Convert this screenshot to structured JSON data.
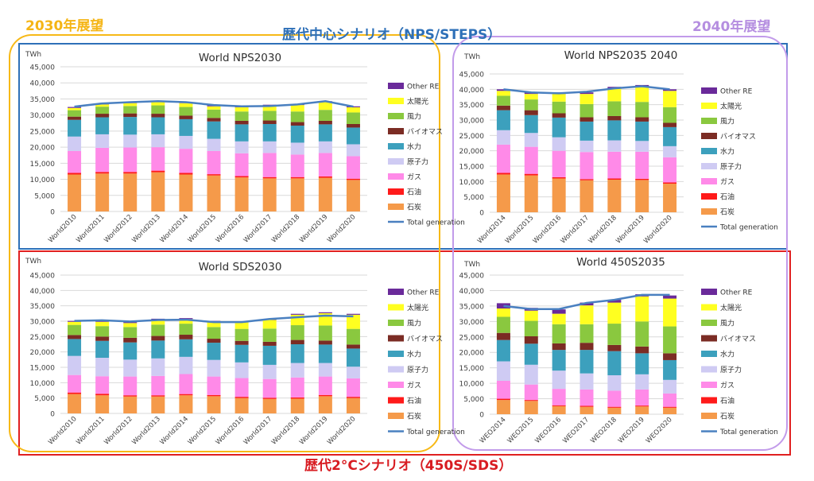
{
  "annotations": {
    "left_group": "2030年展望",
    "right_group": "2040年展望",
    "top_group": "歴代中心シナリオ（NPS/STEPS）",
    "bottom_group": "歴代2°Cシナリオ（450S/SDS）"
  },
  "colors": {
    "石炭": "#f59a4a",
    "石油": "#ff1a1a",
    "ガス": "#ff8ae8",
    "原子力": "#cfcbf3",
    "水力": "#3ca0bd",
    "バイオマス": "#7b2c24",
    "風力": "#8ac83f",
    "太陽光": "#ffff20",
    "Other RE": "#6a2a9a",
    "Total generation": "#4a80c0"
  },
  "chart_data": [
    {
      "type": "bar",
      "stacked": true,
      "title": "World NPS2030",
      "ylabel": "TWh",
      "ylim": [
        0,
        45000
      ],
      "yticks": [
        "0",
        "5,000",
        "10,000",
        "15,000",
        "20,000",
        "25,000",
        "30,000",
        "35,000",
        "40,000",
        "45,000"
      ],
      "legend_position": "right",
      "categories": [
        "World2010",
        "World2011",
        "World2012",
        "World2013",
        "World2014",
        "World2015",
        "World2016",
        "World2017",
        "World2018",
        "World2019",
        "World2020"
      ],
      "series": [
        {
          "name": "石炭",
          "values": [
            11500,
            11800,
            11800,
            12200,
            11500,
            11200,
            10600,
            10300,
            10300,
            10500,
            9800
          ]
        },
        {
          "name": "石油",
          "values": [
            500,
            500,
            500,
            500,
            500,
            400,
            400,
            400,
            400,
            400,
            400
          ]
        },
        {
          "name": "ガス",
          "values": [
            6800,
            7500,
            7600,
            7300,
            7500,
            7200,
            7100,
            7500,
            7000,
            7300,
            7000
          ]
        },
        {
          "name": "原子力",
          "values": [
            4500,
            4200,
            4000,
            4000,
            4000,
            3800,
            3700,
            3600,
            3700,
            3600,
            3700
          ]
        },
        {
          "name": "水力",
          "values": [
            5200,
            5300,
            5500,
            5300,
            5200,
            5400,
            5300,
            5400,
            5300,
            5300,
            5200
          ]
        },
        {
          "name": "バイオマス",
          "values": [
            1000,
            1100,
            1100,
            1100,
            1100,
            1100,
            1100,
            1100,
            1100,
            1100,
            1100
          ]
        },
        {
          "name": "風力",
          "values": [
            2000,
            2200,
            2300,
            2600,
            2700,
            2600,
            2900,
            3000,
            3300,
            3400,
            3600
          ]
        },
        {
          "name": "太陽光",
          "values": [
            700,
            700,
            900,
            1000,
            1200,
            1000,
            1300,
            1600,
            2000,
            2400,
            1600
          ]
        },
        {
          "name": "Other RE",
          "values": [
            300,
            300,
            300,
            300,
            300,
            300,
            300,
            300,
            300,
            300,
            300
          ]
        }
      ],
      "line": {
        "name": "Total generation",
        "values": [
          32600,
          33600,
          34000,
          34300,
          34000,
          33100,
          32700,
          32800,
          33300,
          34300,
          32600
        ]
      }
    },
    {
      "type": "bar",
      "stacked": true,
      "title": "World NPS2035 2040",
      "ylabel": "TWh",
      "ylim": [
        0,
        45000
      ],
      "yticks": [
        "0",
        "5,000",
        "10,000",
        "15,000",
        "20,000",
        "25,000",
        "30,000",
        "35,000",
        "40,000",
        "45,000"
      ],
      "legend_position": "right",
      "categories": [
        "World2014",
        "World2015",
        "World2016",
        "World2017",
        "World2018",
        "World2019",
        "World2020"
      ],
      "series": [
        {
          "name": "石炭",
          "values": [
            12300,
            12000,
            11000,
            10400,
            10600,
            10500,
            9300
          ]
        },
        {
          "name": "石油",
          "values": [
            500,
            500,
            400,
            400,
            400,
            400,
            400
          ]
        },
        {
          "name": "ガス",
          "values": [
            9200,
            8800,
            8600,
            8800,
            8700,
            8800,
            8200
          ]
        },
        {
          "name": "原子力",
          "values": [
            4700,
            4500,
            4400,
            3700,
            3700,
            3500,
            3600
          ]
        },
        {
          "name": "水力",
          "values": [
            6500,
            5800,
            6400,
            6200,
            6500,
            6300,
            6200
          ]
        },
        {
          "name": "バイオマス",
          "values": [
            1500,
            1600,
            1400,
            1400,
            1400,
            1400,
            1400
          ]
        },
        {
          "name": "風力",
          "values": [
            3200,
            3500,
            3800,
            4300,
            4800,
            5000,
            5100
          ]
        },
        {
          "name": "太陽光",
          "values": [
            1600,
            1800,
            2500,
            3300,
            4200,
            5000,
            5300
          ]
        },
        {
          "name": "Other RE",
          "values": [
            500,
            500,
            500,
            500,
            500,
            500,
            500
          ]
        }
      ],
      "line": {
        "name": "Total generation",
        "values": [
          40000,
          39000,
          38700,
          39200,
          40300,
          41000,
          40000
        ]
      }
    },
    {
      "type": "bar",
      "stacked": true,
      "title": "World SDS2030",
      "ylabel": "TWh",
      "ylim": [
        0,
        45000
      ],
      "yticks": [
        "0",
        "5,000",
        "10,000",
        "15,000",
        "20,000",
        "25,000",
        "30,000",
        "35,000",
        "40,000",
        "45,000"
      ],
      "legend_position": "right",
      "categories": [
        "World2010",
        "World2011",
        "World2012",
        "World2013",
        "World2014",
        "World2015",
        "World2016",
        "World2017",
        "World2018",
        "World2019",
        "World2020"
      ],
      "series": [
        {
          "name": "石炭",
          "values": [
            6300,
            5900,
            5500,
            5500,
            5900,
            5600,
            5000,
            4700,
            4800,
            5600,
            5000
          ]
        },
        {
          "name": "石油",
          "values": [
            500,
            500,
            400,
            400,
            400,
            400,
            400,
            400,
            400,
            400,
            400
          ]
        },
        {
          "name": "ガス",
          "values": [
            5700,
            5700,
            6100,
            6300,
            6500,
            6000,
            6100,
            6100,
            6500,
            6000,
            6000
          ]
        },
        {
          "name": "原子力",
          "values": [
            6200,
            6000,
            5500,
            5700,
            5600,
            5400,
            5100,
            4600,
            4700,
            4400,
            3800
          ]
        },
        {
          "name": "水力",
          "values": [
            5500,
            5500,
            5600,
            5800,
            5700,
            5600,
            5700,
            6200,
            6100,
            6000,
            5900
          ]
        },
        {
          "name": "バイオマス",
          "values": [
            1300,
            1400,
            1500,
            1500,
            1500,
            1300,
            1300,
            1300,
            1400,
            1300,
            1300
          ]
        },
        {
          "name": "風力",
          "values": [
            3300,
            3400,
            3500,
            3700,
            3600,
            3800,
            3900,
            4300,
            4800,
            4900,
            5100
          ]
        },
        {
          "name": "太陽光",
          "values": [
            1000,
            1400,
            1300,
            1600,
            1500,
            1700,
            2100,
            2800,
            3400,
            4000,
            4600
          ]
        },
        {
          "name": "Other RE",
          "values": [
            300,
            300,
            300,
            300,
            300,
            300,
            300,
            300,
            300,
            300,
            300
          ]
        }
      ],
      "line": {
        "name": "Total generation",
        "values": [
          30100,
          30300,
          29900,
          30400,
          30500,
          29700,
          29700,
          30700,
          31300,
          31800,
          31600
        ]
      }
    },
    {
      "type": "bar",
      "stacked": true,
      "title": "World 450S2035",
      "ylabel": "TWh",
      "ylim": [
        0,
        45000
      ],
      "yticks": [
        "0",
        "5,000",
        "10,000",
        "15,000",
        "20,000",
        "25,000",
        "30,000",
        "35,000",
        "40,000",
        "45,000"
      ],
      "legend_position": "right",
      "categories": [
        "WEO2014",
        "WEO2015",
        "WEO2016",
        "WEO2017",
        "WEO2018",
        "WEO2019",
        "WEO2020"
      ],
      "series": [
        {
          "name": "石炭",
          "values": [
            4600,
            4300,
            2600,
            2400,
            2100,
            2500,
            2100
          ]
        },
        {
          "name": "石油",
          "values": [
            400,
            300,
            300,
            300,
            300,
            300,
            300
          ]
        },
        {
          "name": "ガス",
          "values": [
            5800,
            5000,
            5300,
            5300,
            5200,
            5200,
            4300
          ]
        },
        {
          "name": "原子力",
          "values": [
            6300,
            6400,
            5900,
            5200,
            5000,
            4900,
            4400
          ]
        },
        {
          "name": "水力",
          "values": [
            6900,
            6800,
            6700,
            7600,
            7800,
            6800,
            6400
          ]
        },
        {
          "name": "バイオマス",
          "values": [
            2300,
            2400,
            2100,
            2300,
            2000,
            2200,
            2200
          ]
        },
        {
          "name": "風力",
          "values": [
            5200,
            5000,
            6200,
            6000,
            6900,
            8100,
            8700
          ]
        },
        {
          "name": "太陽光",
          "values": [
            2700,
            3300,
            3400,
            6100,
            6800,
            8100,
            9000
          ]
        },
        {
          "name": "Other RE",
          "values": [
            1700,
            900,
            1400,
            900,
            900,
            700,
            1000
          ]
        }
      ],
      "line": {
        "name": "Total generation",
        "values": [
          35000,
          34000,
          34000,
          36000,
          37000,
          38600,
          38600
        ]
      }
    }
  ]
}
